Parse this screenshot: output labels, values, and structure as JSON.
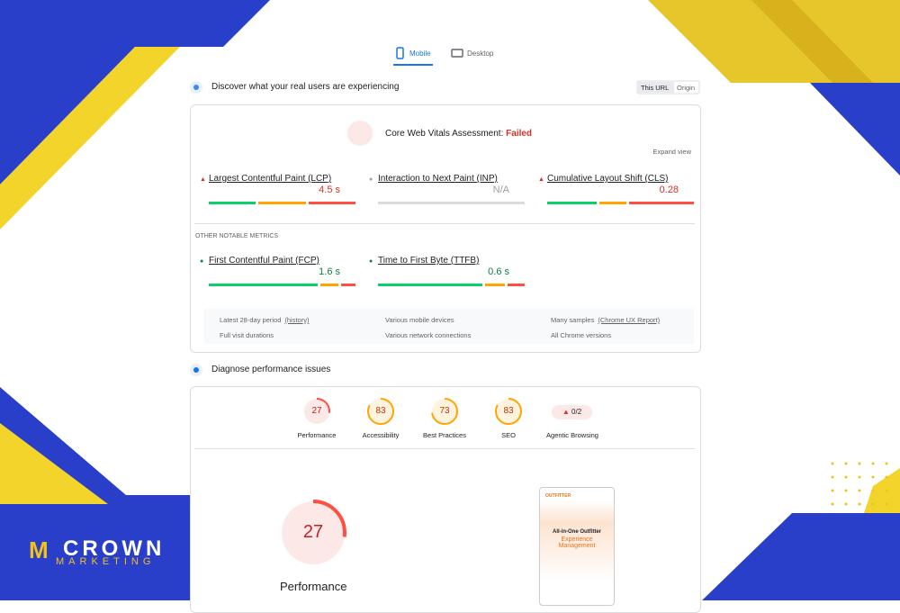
{
  "tabs": [
    "Mobile",
    "Desktop"
  ],
  "field": {
    "title": "Discover what your real users are experiencing",
    "toggle": [
      "This URL",
      "Origin"
    ],
    "assessment": {
      "label": "Core Web Vitals Assessment:",
      "status": "Failed"
    },
    "expand": "Expand view",
    "metrics": [
      {
        "name": "Largest Contentful Paint (LCP)",
        "value": "4.5 s",
        "distribution": [
          33,
          34,
          33
        ]
      },
      {
        "name": "Interaction to Next Paint (INP)",
        "value": "N/A"
      },
      {
        "name": "Cumulative Layout Shift (CLS)",
        "value": "0.28",
        "distribution": [
          35,
          19,
          46
        ]
      }
    ],
    "other_heading": "OTHER NOTABLE METRICS",
    "other_metrics": [
      {
        "name": "First Contentful Paint (FCP)",
        "value": "1.6 s",
        "distribution": [
          77,
          13,
          10
        ]
      },
      {
        "name": "Time to First Byte (TTFB)",
        "value": "0.6 s",
        "distribution": [
          74,
          14,
          12
        ]
      }
    ],
    "footer": [
      {
        "text": "Latest 28-day period",
        "link": "(history)"
      },
      {
        "text": "Various mobile devices"
      },
      {
        "text": "Many samples",
        "link": "(Chrome UX Report)"
      },
      {
        "text": "Full visit durations"
      },
      {
        "text": "Various network connections"
      },
      {
        "text": "All Chrome versions"
      }
    ]
  },
  "diagnose": {
    "title": "Diagnose performance issues",
    "scores": [
      {
        "label": "Performance",
        "score": 27
      },
      {
        "label": "Accessibility",
        "score": 83
      },
      {
        "label": "Best Practices",
        "score": 73
      },
      {
        "label": "SEO",
        "score": 83
      }
    ],
    "agentic": {
      "label": "Agentic Browsing",
      "score": "0/2"
    },
    "main": {
      "score": 27,
      "label": "Performance"
    },
    "preview": {
      "headline": "All-in-One Outfitter",
      "subhead": "Experience Management"
    }
  },
  "logo": {
    "name": "CROWN",
    "tagline": "MARKETING"
  }
}
